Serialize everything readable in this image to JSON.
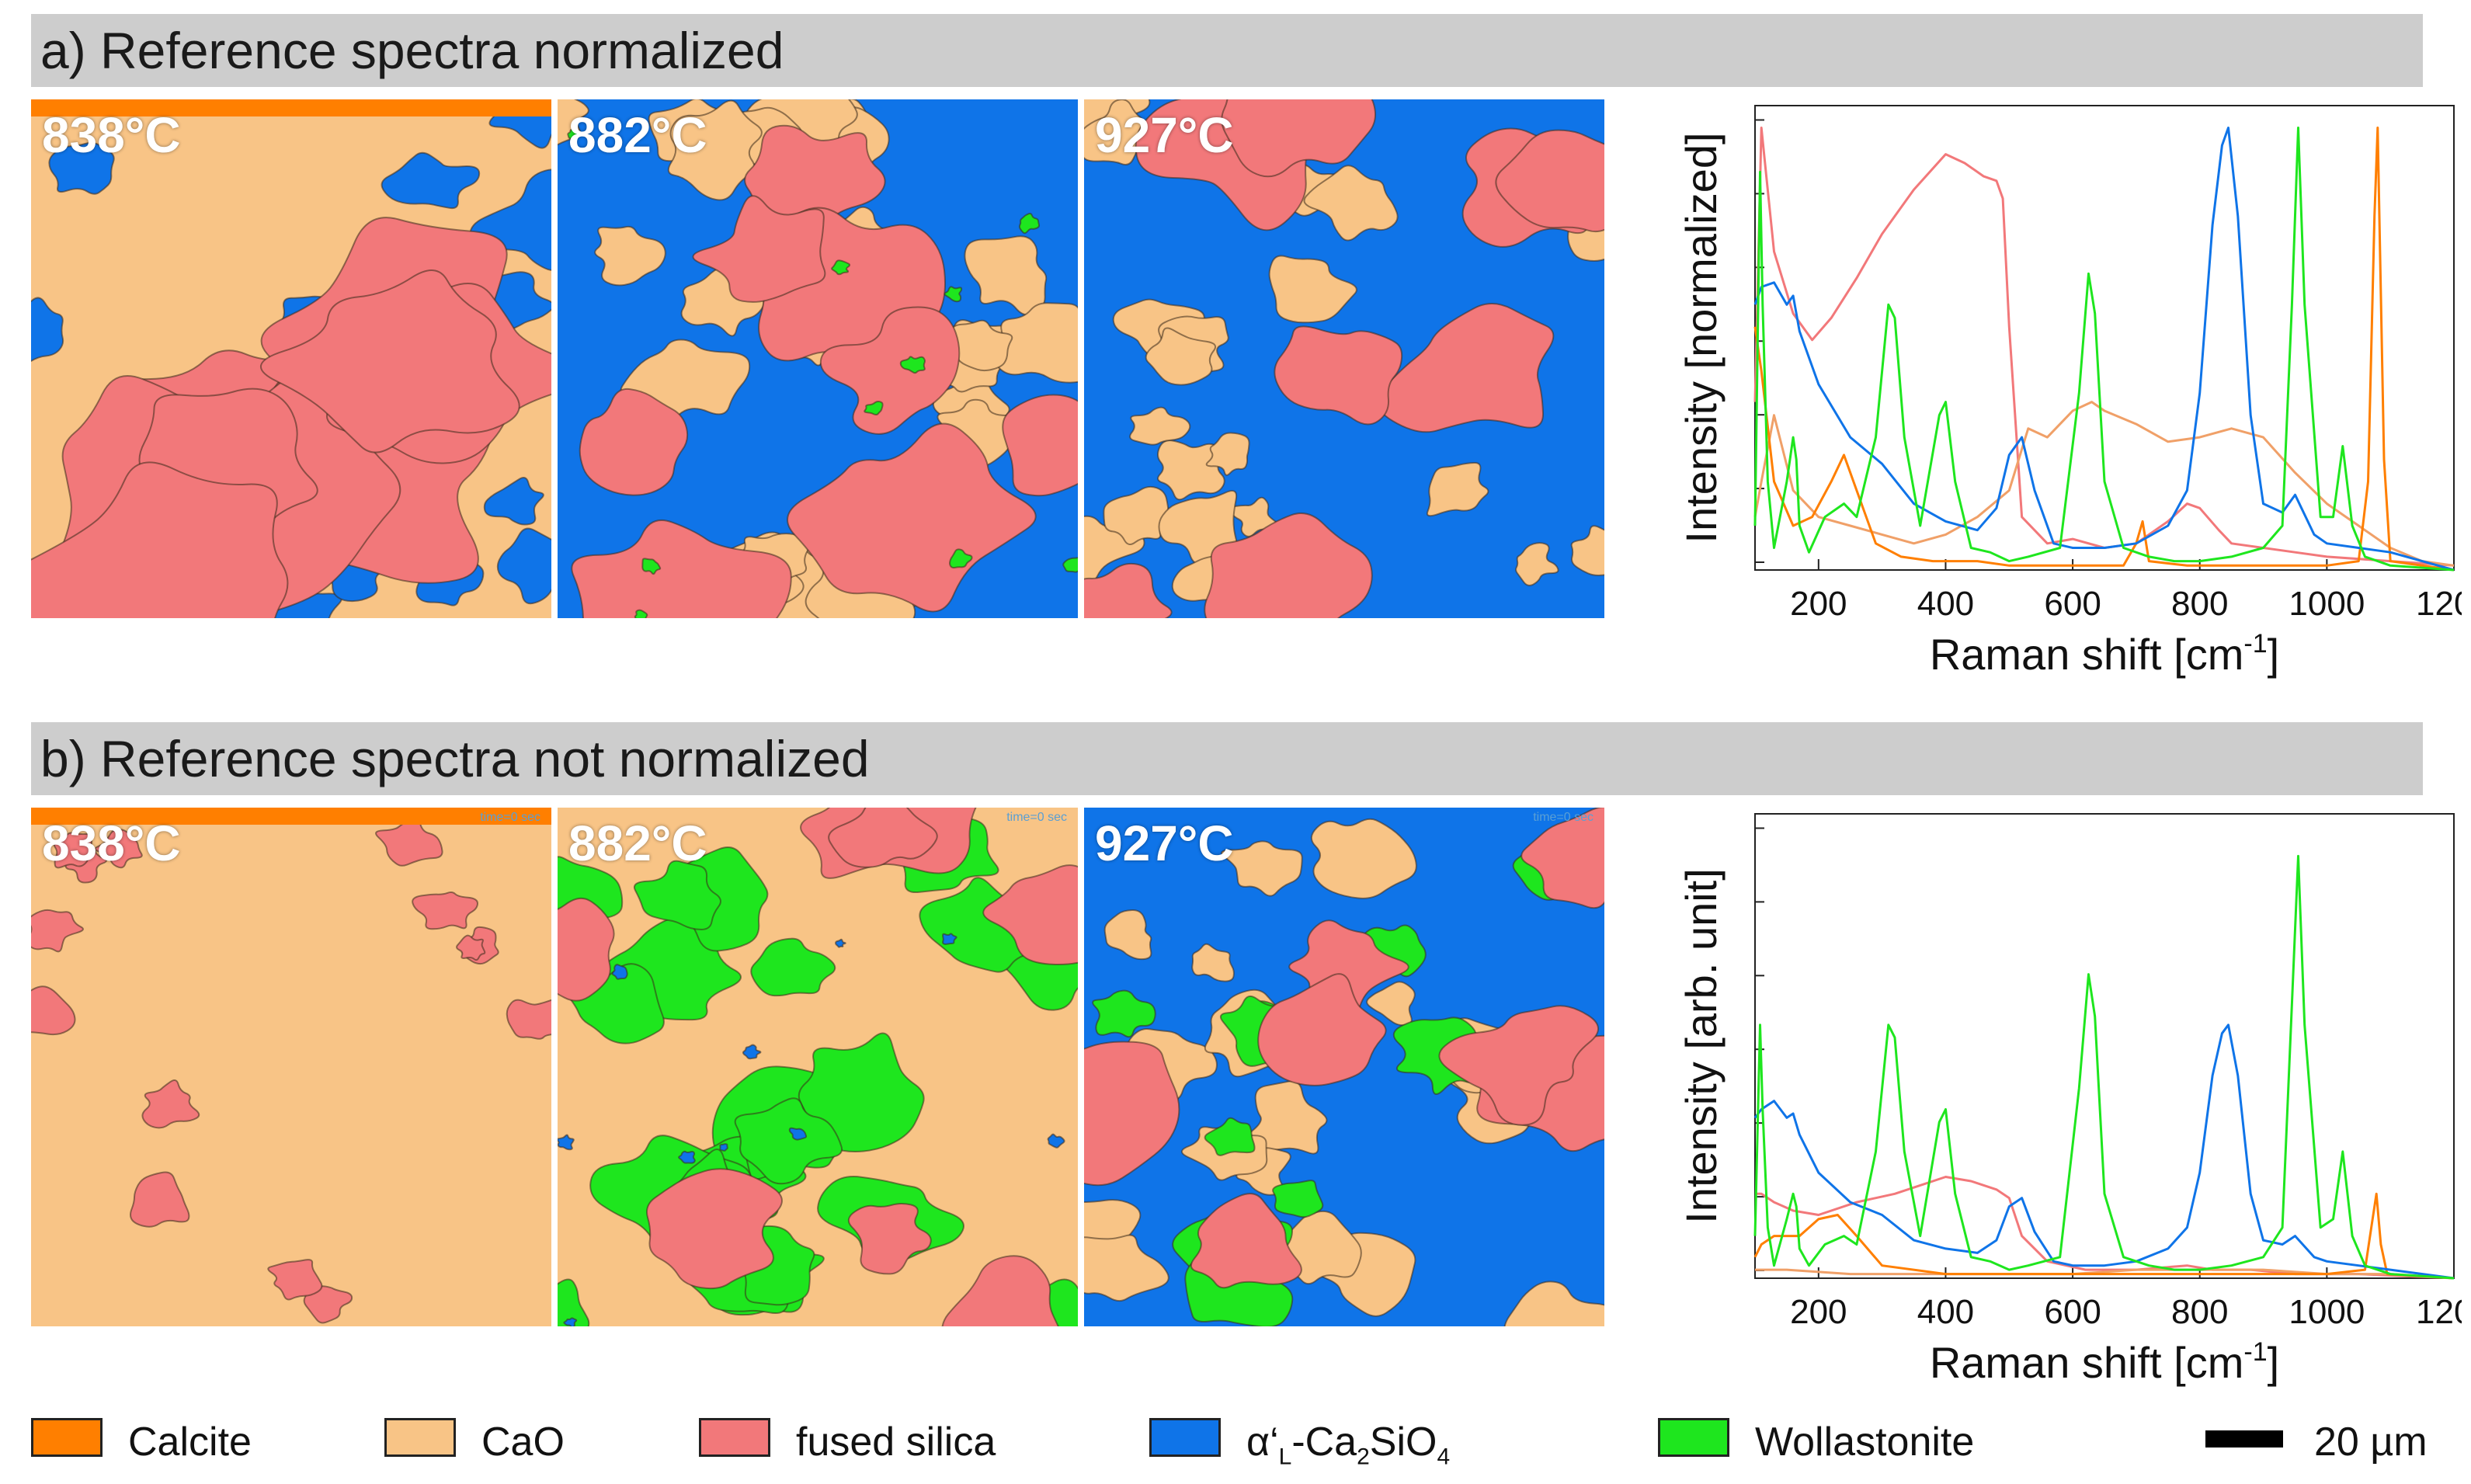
{
  "panel_a": {
    "title": "a) Reference spectra normalized",
    "maps": [
      {
        "temp": "838°C"
      },
      {
        "temp": "882°C"
      },
      {
        "temp": "927°C"
      }
    ]
  },
  "panel_b": {
    "title": "b) Reference spectra not normalized",
    "maps": [
      {
        "temp": "838°C",
        "timestamp": "time=0 sec"
      },
      {
        "temp": "882°C",
        "timestamp": "time=0 sec"
      },
      {
        "temp": "927°C",
        "timestamp": "time=0 sec"
      }
    ]
  },
  "legend": [
    {
      "label": "Calcite",
      "color": "#ff7f00"
    },
    {
      "label": "CaO",
      "color": "#f8c486"
    },
    {
      "label": "fused silica",
      "color": "#f2787a"
    },
    {
      "label": "α‘L-Ca2SiO4",
      "color": "#0f74e8"
    },
    {
      "label": "Wollastonite",
      "color": "#1ee61e"
    }
  ],
  "scale_bar": {
    "label": "20 µm"
  },
  "chart_data": [
    {
      "type": "line",
      "ylabel": "Intensity [normalized]",
      "xlabel": "Raman shift [cm-1]",
      "xlim": [
        100,
        1200
      ],
      "ylim": [
        0,
        1.05
      ],
      "xticks": [
        200,
        400,
        600,
        800,
        1000,
        1200
      ],
      "series": [
        {
          "color": "#f2787a",
          "x": [
            100,
            110,
            130,
            160,
            190,
            220,
            260,
            300,
            350,
            400,
            430,
            460,
            480,
            490,
            500,
            520,
            560,
            600,
            650,
            700,
            750,
            780,
            800,
            830,
            850,
            900,
            950,
            1000,
            1100,
            1200
          ],
          "y": [
            0.38,
            1.0,
            0.72,
            0.58,
            0.52,
            0.57,
            0.66,
            0.76,
            0.86,
            0.94,
            0.92,
            0.89,
            0.88,
            0.84,
            0.55,
            0.12,
            0.06,
            0.07,
            0.05,
            0.06,
            0.11,
            0.15,
            0.14,
            0.09,
            0.06,
            0.05,
            0.04,
            0.03,
            0.02,
            0.01
          ]
        },
        {
          "color": "#f0a068",
          "x": [
            100,
            110,
            130,
            160,
            200,
            250,
            300,
            350,
            400,
            450,
            500,
            530,
            560,
            600,
            630,
            650,
            700,
            750,
            800,
            850,
            900,
            950,
            1000,
            1050,
            1100,
            1150,
            1200
          ],
          "y": [
            0.12,
            0.2,
            0.35,
            0.18,
            0.12,
            0.1,
            0.08,
            0.06,
            0.08,
            0.12,
            0.18,
            0.32,
            0.3,
            0.36,
            0.38,
            0.36,
            0.33,
            0.29,
            0.3,
            0.32,
            0.3,
            0.22,
            0.15,
            0.1,
            0.05,
            0.02,
            0.01
          ]
        },
        {
          "color": "#ff7f00",
          "x": [
            100,
            110,
            130,
            160,
            190,
            220,
            240,
            260,
            290,
            330,
            380,
            450,
            500,
            600,
            680,
            700,
            710,
            720,
            780,
            900,
            1000,
            1050,
            1065,
            1075,
            1080,
            1090,
            1100,
            1200
          ],
          "y": [
            0.55,
            0.45,
            0.2,
            0.1,
            0.12,
            0.2,
            0.26,
            0.18,
            0.06,
            0.03,
            0.02,
            0.02,
            0.01,
            0.01,
            0.01,
            0.06,
            0.11,
            0.02,
            0.01,
            0.01,
            0.01,
            0.02,
            0.2,
            0.8,
            1.0,
            0.25,
            0.02,
            0.0
          ]
        },
        {
          "color": "#0f74e8",
          "x": [
            100,
            110,
            130,
            150,
            160,
            170,
            200,
            250,
            300,
            350,
            400,
            450,
            480,
            500,
            520,
            540,
            570,
            600,
            650,
            700,
            750,
            780,
            800,
            820,
            835,
            845,
            860,
            880,
            900,
            930,
            950,
            980,
            1000,
            1050,
            1100,
            1200
          ],
          "y": [
            0.6,
            0.64,
            0.65,
            0.6,
            0.62,
            0.54,
            0.42,
            0.3,
            0.24,
            0.15,
            0.11,
            0.09,
            0.14,
            0.26,
            0.3,
            0.18,
            0.06,
            0.05,
            0.05,
            0.06,
            0.1,
            0.18,
            0.4,
            0.78,
            0.96,
            1.0,
            0.8,
            0.35,
            0.15,
            0.13,
            0.17,
            0.08,
            0.06,
            0.05,
            0.04,
            0.0
          ]
        },
        {
          "color": "#1ee61e",
          "x": [
            100,
            108,
            112,
            120,
            130,
            150,
            160,
            165,
            170,
            185,
            210,
            240,
            260,
            290,
            310,
            320,
            335,
            360,
            390,
            400,
            415,
            440,
            470,
            500,
            530,
            580,
            610,
            625,
            635,
            650,
            680,
            720,
            760,
            800,
            850,
            900,
            930,
            945,
            955,
            965,
            990,
            1010,
            1025,
            1040,
            1060,
            1100,
            1200
          ],
          "y": [
            0.1,
            0.9,
            0.6,
            0.2,
            0.05,
            0.2,
            0.3,
            0.25,
            0.1,
            0.04,
            0.12,
            0.15,
            0.12,
            0.3,
            0.6,
            0.57,
            0.3,
            0.1,
            0.35,
            0.38,
            0.2,
            0.05,
            0.04,
            0.02,
            0.03,
            0.05,
            0.4,
            0.67,
            0.58,
            0.2,
            0.05,
            0.03,
            0.02,
            0.02,
            0.03,
            0.05,
            0.1,
            0.6,
            1.0,
            0.6,
            0.12,
            0.12,
            0.28,
            0.1,
            0.03,
            0.01,
            0.0
          ]
        }
      ]
    },
    {
      "type": "line",
      "ylabel": "Intensity [arb. unit]",
      "xlabel": "Raman shift [cm-1]",
      "xlim": [
        100,
        1200
      ],
      "ylim": [
        0,
        1.1
      ],
      "xticks": [
        200,
        400,
        600,
        800,
        1000,
        1200
      ],
      "series": [
        {
          "color": "#f2787a",
          "x": [
            100,
            110,
            130,
            160,
            200,
            260,
            320,
            380,
            400,
            440,
            480,
            500,
            520,
            560,
            620,
            700,
            780,
            820,
            880,
            950,
            1050,
            1200
          ],
          "y": [
            0.2,
            0.2,
            0.18,
            0.16,
            0.15,
            0.18,
            0.2,
            0.23,
            0.24,
            0.23,
            0.21,
            0.19,
            0.1,
            0.04,
            0.02,
            0.02,
            0.03,
            0.02,
            0.02,
            0.01,
            0.01,
            0.0
          ]
        },
        {
          "color": "#f0a068",
          "x": [
            100,
            150,
            250,
            400,
            500,
            600,
            700,
            800,
            900,
            1000,
            1100,
            1200
          ],
          "y": [
            0.02,
            0.02,
            0.01,
            0.01,
            0.01,
            0.01,
            0.02,
            0.02,
            0.02,
            0.01,
            0.01,
            0.0
          ]
        },
        {
          "color": "#ff7f00",
          "x": [
            100,
            110,
            130,
            170,
            200,
            230,
            260,
            300,
            400,
            600,
            700,
            800,
            1000,
            1060,
            1070,
            1078,
            1085,
            1095,
            1200
          ],
          "y": [
            0.05,
            0.08,
            0.1,
            0.1,
            0.14,
            0.15,
            0.1,
            0.03,
            0.01,
            0.01,
            0.01,
            0.01,
            0.01,
            0.02,
            0.12,
            0.2,
            0.08,
            0.01,
            0.0
          ]
        },
        {
          "color": "#0f74e8",
          "x": [
            100,
            110,
            130,
            150,
            160,
            170,
            200,
            250,
            300,
            350,
            400,
            450,
            480,
            500,
            520,
            540,
            570,
            600,
            650,
            700,
            750,
            780,
            800,
            820,
            835,
            845,
            860,
            880,
            900,
            930,
            950,
            980,
            1000,
            1050,
            1100,
            1200
          ],
          "y": [
            0.38,
            0.4,
            0.42,
            0.38,
            0.39,
            0.34,
            0.25,
            0.18,
            0.15,
            0.09,
            0.07,
            0.06,
            0.09,
            0.17,
            0.19,
            0.11,
            0.04,
            0.03,
            0.03,
            0.04,
            0.07,
            0.12,
            0.25,
            0.48,
            0.58,
            0.6,
            0.48,
            0.2,
            0.09,
            0.08,
            0.1,
            0.05,
            0.04,
            0.03,
            0.02,
            0.0
          ]
        },
        {
          "color": "#1ee61e",
          "x": [
            100,
            108,
            112,
            120,
            130,
            150,
            160,
            165,
            170,
            185,
            210,
            240,
            260,
            290,
            310,
            320,
            335,
            360,
            390,
            400,
            415,
            440,
            470,
            500,
            530,
            580,
            610,
            625,
            635,
            650,
            680,
            720,
            760,
            800,
            850,
            900,
            930,
            945,
            955,
            965,
            990,
            1010,
            1025,
            1040,
            1060,
            1100,
            1200
          ],
          "y": [
            0.1,
            0.6,
            0.4,
            0.12,
            0.03,
            0.14,
            0.2,
            0.17,
            0.07,
            0.03,
            0.08,
            0.1,
            0.08,
            0.3,
            0.6,
            0.57,
            0.3,
            0.1,
            0.37,
            0.4,
            0.2,
            0.05,
            0.04,
            0.02,
            0.03,
            0.05,
            0.45,
            0.72,
            0.62,
            0.2,
            0.05,
            0.03,
            0.02,
            0.02,
            0.03,
            0.05,
            0.12,
            0.65,
            1.0,
            0.6,
            0.12,
            0.14,
            0.3,
            0.1,
            0.03,
            0.01,
            0.0
          ]
        }
      ]
    }
  ]
}
